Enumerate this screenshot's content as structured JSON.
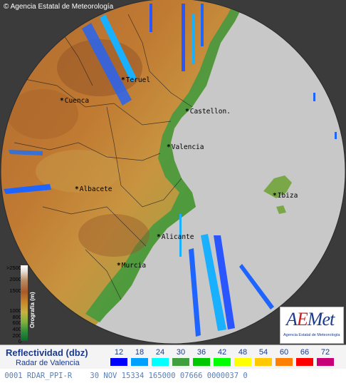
{
  "copyright": "© Agencia Estatal de Meteorología",
  "cities": [
    {
      "name": "Teruel"
    },
    {
      "name": "Cuenca"
    },
    {
      "name": "Castellon."
    },
    {
      "name": "Valencia"
    },
    {
      "name": "Albacete"
    },
    {
      "name": "Ibiza"
    },
    {
      "name": "Alicante"
    },
    {
      "name": "Murcia"
    }
  ],
  "orography": {
    "title": "Orografía (m)",
    "levels": [
      ">2500",
      "2000",
      "1500",
      "1000",
      "800",
      "600",
      "400",
      "200",
      "0"
    ]
  },
  "logo": {
    "main_prefix": "A",
    "main_e": "E",
    "main_suffix": "Met",
    "subtitle": "Agencia Estatal de Meteorología"
  },
  "legend": {
    "title": "Reflectividad (dbz)",
    "subtitle": "Radar de Valencia",
    "ticks": [
      "12",
      "18",
      "24",
      "30",
      "36",
      "42",
      "48",
      "54",
      "60",
      "66",
      "72"
    ],
    "colors": [
      "#0000ff",
      "#00a0ff",
      "#00ffff",
      "#40a040",
      "#00c800",
      "#00ff00",
      "#ffff00",
      "#ffc800",
      "#ff8000",
      "#ff0000",
      "#c80078"
    ]
  },
  "status_text": " 0001 RDAR_PPI-R    30 NOV 15334 165000 07666 0000037 0"
}
